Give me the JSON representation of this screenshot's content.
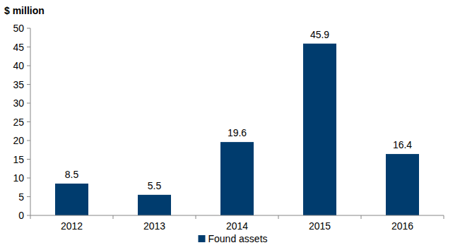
{
  "chart_data": {
    "type": "bar",
    "y_label": "$ million",
    "categories": [
      "2012",
      "2013",
      "2014",
      "2015",
      "2016"
    ],
    "series": [
      {
        "name": "Found assets",
        "color": "#003c6e",
        "values": [
          8.5,
          5.5,
          19.6,
          45.9,
          16.4
        ]
      }
    ],
    "ylim": [
      0,
      50
    ],
    "yticks": [
      0,
      5,
      10,
      15,
      20,
      25,
      30,
      35,
      40,
      45,
      50
    ],
    "grid": false,
    "legend": "bottom",
    "data_labels": true
  }
}
